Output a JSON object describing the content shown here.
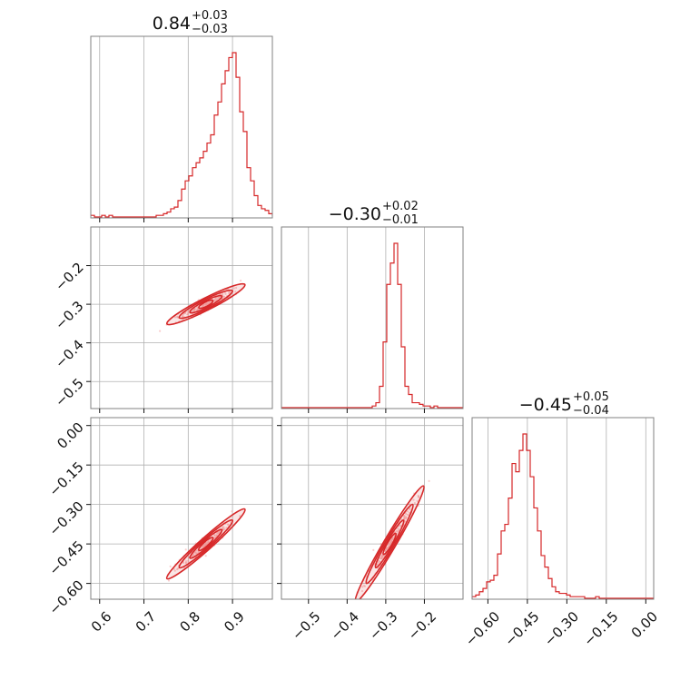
{
  "chart_data": {
    "type": "corner",
    "grid": true,
    "colors": {
      "hist": "#d62728",
      "contour": "#d62728",
      "points": "#f4a6a6",
      "grid": "#b0b0b0",
      "frame": "#808080"
    },
    "params": [
      {
        "title": {
          "median": "0.84",
          "plus": "+0.03",
          "minus": "−0.03"
        },
        "range": [
          0.58,
          0.99
        ],
        "ticks": [
          0.6,
          0.7,
          0.8,
          0.9
        ],
        "tick_labels": [
          "0.6",
          "0.7",
          "0.8",
          "0.9"
        ]
      },
      {
        "title": {
          "median": "−0.30",
          "plus": "+0.02",
          "minus": "−0.01"
        },
        "range": [
          -0.57,
          -0.1
        ],
        "ticks": [
          -0.5,
          -0.4,
          -0.3,
          -0.2
        ],
        "tick_labels": [
          "−0.5",
          "−0.4",
          "−0.3",
          "−0.2"
        ]
      },
      {
        "title": {
          "median": "−0.45",
          "plus": "+0.05",
          "minus": "−0.04"
        },
        "range": [
          -0.66,
          0.03
        ],
        "ticks": [
          -0.6,
          -0.45,
          -0.3,
          -0.15,
          0.0
        ],
        "tick_labels": [
          "−0.60",
          "−0.45",
          "−0.30",
          "−0.15",
          "0.00"
        ]
      }
    ],
    "histograms": [
      {
        "bin_start": 0.58,
        "bin_width": 0.0082,
        "counts": [
          1,
          0,
          0,
          1,
          0,
          1,
          0,
          0,
          0,
          0,
          0,
          0,
          0,
          0,
          0,
          0,
          0,
          0,
          1,
          1,
          2,
          3,
          5,
          6,
          10,
          17,
          22,
          25,
          30,
          33,
          36,
          40,
          45,
          50,
          62,
          70,
          81,
          89,
          97,
          100,
          85,
          64,
          52,
          30,
          22,
          13,
          7,
          5,
          4,
          2,
          1
        ]
      },
      {
        "bin_start": -0.57,
        "bin_width": 0.0094,
        "counts": [
          0,
          0,
          0,
          0,
          0,
          0,
          0,
          0,
          0,
          0,
          0,
          0,
          0,
          0,
          0,
          0,
          0,
          0,
          0,
          0,
          0,
          0,
          0,
          0,
          0,
          1,
          3,
          13,
          40,
          75,
          88,
          100,
          75,
          37,
          13,
          8,
          3,
          3,
          2,
          1,
          1,
          0,
          1,
          0,
          0,
          0,
          0,
          0,
          0,
          0
        ]
      },
      {
        "bin_start": -0.66,
        "bin_width": 0.0138,
        "counts": [
          1,
          2,
          4,
          6,
          10,
          11,
          14,
          27,
          41,
          45,
          61,
          82,
          77,
          90,
          100,
          90,
          74,
          55,
          41,
          26,
          19,
          12,
          7,
          4,
          3,
          3,
          2,
          1,
          1,
          1,
          1,
          0,
          0,
          0,
          1,
          0,
          0,
          0,
          0,
          0,
          0,
          0,
          0,
          0,
          0,
          0,
          0,
          0,
          0,
          0
        ]
      }
    ],
    "joint": [
      {
        "x_param": 0,
        "y_param": 1,
        "center": [
          0.84,
          -0.3
        ],
        "slope": 0.58
      },
      {
        "x_param": 0,
        "y_param": 2,
        "center": [
          0.84,
          -0.45
        ],
        "slope": 1.5
      },
      {
        "x_param": 1,
        "y_param": 2,
        "center": [
          -0.29,
          -0.45
        ],
        "slope": 2.5
      }
    ]
  }
}
